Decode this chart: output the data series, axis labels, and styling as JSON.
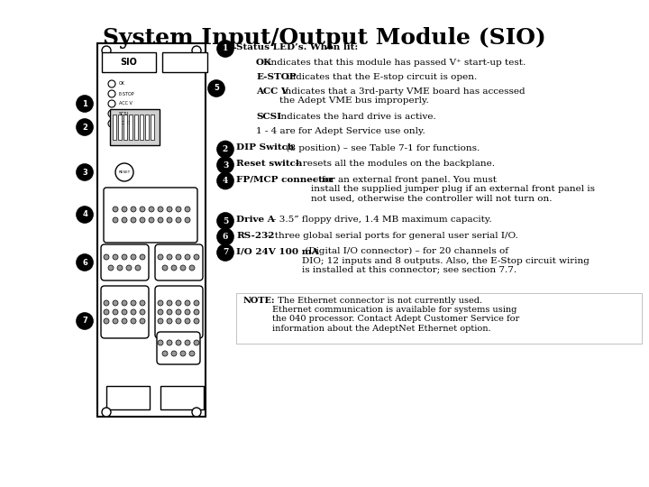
{
  "title": "System Input/Output Module (SIO)",
  "background_color": "#ffffff",
  "title_fontsize": 18,
  "body_fontsize": 7.5,
  "note_fontsize": 7.0,
  "items": [
    {
      "num": "1",
      "bold": "Status LED’s. When lit:",
      "rest": ""
    },
    {
      "num": "",
      "bold": "OK",
      "rest": " indicates that this module has passed V⁺ start-up test."
    },
    {
      "num": "",
      "bold": "E-STOP",
      "rest": " indicates that the E-stop circuit is open."
    },
    {
      "num": "",
      "bold": "ACC V",
      "rest": " indicates that a 3rd-party VME board has accessed\nthe Adept VME bus improperly."
    },
    {
      "num": "",
      "bold": "SCSI",
      "rest": " indicates the hard drive is active."
    },
    {
      "num": "",
      "bold": "",
      "rest": "1 - 4 are for Adept Service use only."
    },
    {
      "num": "2",
      "bold": "DIP Switch",
      "rest": " (8 position) – see Table 7-1 for functions."
    },
    {
      "num": "3",
      "bold": "Reset switch",
      "rest": " – resets all the modules on the backplane."
    },
    {
      "num": "4",
      "bold": "FP/MCP connector",
      "rest": " – for an external front panel. You must\ninstall the supplied jumper plug if an external front panel is\nnot used, otherwise the controller will not turn on."
    },
    {
      "num": "5",
      "bold": "Drive A",
      "rest": " – 3.5” floppy drive, 1.4 MB maximum capacity."
    },
    {
      "num": "6",
      "bold": "RS-232",
      "rest": " – three global serial ports for general user serial I/O."
    },
    {
      "num": "7",
      "bold": "I/O 24V 100 mA",
      "rest": " (Digital I/O connector) – for 20 channels of\nDIO; 12 inputs and 8 outputs. Also, the E-Stop circuit wiring\nis installed at this connector; see section 7.7."
    }
  ],
  "note_bold": "NOTE:",
  "note_rest": "  The Ethernet connector is not currently used.\nEthernet communication is available for systems using\nthe 040 processor. Contact Adept Customer Service for\ninformation about the AdeptNet Ethernet option."
}
